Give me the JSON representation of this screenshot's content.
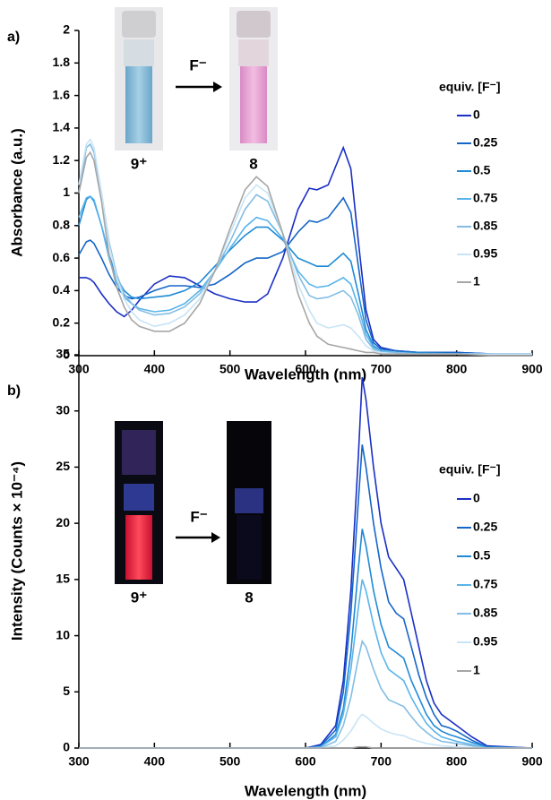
{
  "chart_data": [
    {
      "type": "line",
      "panel_label": "a)",
      "xlabel": "Wavelength (nm)",
      "ylabel": "Absorbance (a.u.)",
      "annotations": [
        "9⁺",
        "F⁻",
        "8"
      ],
      "legend_title": "equiv. [F⁻]",
      "legend": "right",
      "xlim": [
        300,
        900
      ],
      "xticks": [
        300,
        400,
        500,
        600,
        700,
        800,
        900
      ],
      "ylim": [
        0,
        2
      ],
      "yticks": [
        0,
        0.2,
        0.4,
        0.6,
        0.8,
        1,
        1.2,
        1.4,
        1.6,
        1.8,
        2
      ],
      "x": [
        300,
        310,
        315,
        320,
        330,
        340,
        350,
        360,
        370,
        380,
        400,
        420,
        440,
        460,
        480,
        500,
        520,
        535,
        550,
        570,
        590,
        605,
        615,
        630,
        650,
        660,
        670,
        680,
        690,
        700,
        720,
        750,
        800,
        850,
        900
      ],
      "series": [
        {
          "name": "0",
          "color": "#1a2fc4",
          "values": [
            0.48,
            0.48,
            0.47,
            0.45,
            0.38,
            0.32,
            0.27,
            0.24,
            0.28,
            0.34,
            0.44,
            0.49,
            0.48,
            0.43,
            0.38,
            0.35,
            0.33,
            0.33,
            0.38,
            0.6,
            0.9,
            1.03,
            1.02,
            1.05,
            1.28,
            1.15,
            0.7,
            0.28,
            0.1,
            0.05,
            0.03,
            0.02,
            0.02,
            0.01,
            0.01
          ]
        },
        {
          "name": "0.25",
          "color": "#1565c8",
          "values": [
            0.62,
            0.7,
            0.71,
            0.69,
            0.6,
            0.5,
            0.42,
            0.37,
            0.35,
            0.36,
            0.4,
            0.43,
            0.43,
            0.42,
            0.44,
            0.5,
            0.57,
            0.6,
            0.6,
            0.64,
            0.76,
            0.83,
            0.82,
            0.85,
            0.97,
            0.88,
            0.55,
            0.22,
            0.08,
            0.04,
            0.03,
            0.02,
            0.02,
            0.01,
            0.01
          ]
        },
        {
          "name": "0.5",
          "color": "#1f8ad6",
          "values": [
            0.8,
            0.96,
            0.98,
            0.95,
            0.8,
            0.62,
            0.48,
            0.4,
            0.36,
            0.35,
            0.36,
            0.37,
            0.4,
            0.45,
            0.55,
            0.65,
            0.74,
            0.79,
            0.79,
            0.71,
            0.6,
            0.57,
            0.55,
            0.55,
            0.63,
            0.58,
            0.38,
            0.16,
            0.06,
            0.03,
            0.02,
            0.02,
            0.01,
            0.01,
            0.01
          ]
        },
        {
          "name": "0.75",
          "color": "#5ab4ea",
          "values": [
            0.85,
            0.97,
            0.98,
            0.96,
            0.8,
            0.6,
            0.45,
            0.36,
            0.32,
            0.29,
            0.27,
            0.28,
            0.32,
            0.4,
            0.52,
            0.66,
            0.79,
            0.85,
            0.83,
            0.72,
            0.52,
            0.44,
            0.42,
            0.43,
            0.48,
            0.44,
            0.3,
            0.13,
            0.05,
            0.03,
            0.02,
            0.01,
            0.01,
            0.01,
            0.01
          ]
        },
        {
          "name": "0.85",
          "color": "#84bde3",
          "values": [
            1,
            1.28,
            1.3,
            1.25,
            1,
            0.7,
            0.5,
            0.38,
            0.32,
            0.28,
            0.25,
            0.26,
            0.3,
            0.38,
            0.52,
            0.7,
            0.9,
            0.99,
            0.95,
            0.75,
            0.5,
            0.37,
            0.35,
            0.36,
            0.4,
            0.36,
            0.25,
            0.1,
            0.04,
            0.02,
            0.02,
            0.01,
            0.01,
            0.01,
            0.01
          ]
        },
        {
          "name": "0.95",
          "color": "#c8e4f6",
          "values": [
            1.05,
            1.3,
            1.33,
            1.28,
            1,
            0.68,
            0.48,
            0.35,
            0.27,
            0.22,
            0.18,
            0.2,
            0.25,
            0.35,
            0.52,
            0.75,
            0.97,
            1.05,
            1,
            0.75,
            0.44,
            0.28,
            0.2,
            0.17,
            0.19,
            0.17,
            0.12,
            0.06,
            0.03,
            0.02,
            0.01,
            0.01,
            0.01,
            0.01,
            0.01
          ]
        },
        {
          "name": "1",
          "color": "#a6a6a6",
          "values": [
            1,
            1.22,
            1.25,
            1.2,
            0.95,
            0.62,
            0.42,
            0.3,
            0.22,
            0.18,
            0.15,
            0.15,
            0.2,
            0.32,
            0.52,
            0.78,
            1.02,
            1.1,
            1.04,
            0.75,
            0.38,
            0.2,
            0.12,
            0.07,
            0.05,
            0.04,
            0.03,
            0.02,
            0.02,
            0.01,
            0.01,
            0.01,
            0.01,
            0,
            0
          ]
        }
      ]
    },
    {
      "type": "line",
      "panel_label": "b)",
      "xlabel": "Wavelength (nm)",
      "ylabel": "Intensity (Counts × 10⁻⁴)",
      "annotations": [
        "9⁺",
        "F⁻",
        "8"
      ],
      "legend_title": "equiv. [F⁻]",
      "legend": "right",
      "xlim": [
        300,
        900
      ],
      "xticks": [
        300,
        400,
        500,
        600,
        700,
        800,
        900
      ],
      "ylim": [
        0,
        35
      ],
      "yticks": [
        0,
        5,
        10,
        15,
        20,
        25,
        30,
        35
      ],
      "x": [
        300,
        400,
        500,
        600,
        620,
        640,
        650,
        660,
        670,
        675,
        680,
        690,
        700,
        710,
        720,
        730,
        740,
        750,
        760,
        770,
        780,
        790,
        800,
        820,
        840,
        900
      ],
      "series": [
        {
          "name": "0",
          "color": "#1a2fc4",
          "values": [
            0,
            0,
            0,
            0,
            0.3,
            2,
            6,
            14,
            26,
            33,
            31,
            25,
            20,
            17,
            16,
            15,
            12,
            9,
            6,
            4,
            3,
            2.5,
            2,
            1,
            0.2,
            0
          ]
        },
        {
          "name": "0.25",
          "color": "#1565c8",
          "values": [
            0,
            0,
            0,
            0,
            0.2,
            1.6,
            5,
            12,
            22,
            27,
            25,
            20,
            16,
            13,
            12,
            11.5,
            9,
            6.5,
            4.5,
            3,
            2,
            1.8,
            1.5,
            0.7,
            0.1,
            0
          ]
        },
        {
          "name": "0.5",
          "color": "#1f8ad6",
          "values": [
            0,
            0,
            0,
            0,
            0.1,
            1.2,
            3.5,
            8.5,
            16,
            19.5,
            18,
            14,
            11,
            9,
            8.5,
            8,
            6,
            4.5,
            3,
            2,
            1.5,
            1.2,
            1,
            0.5,
            0.1,
            0
          ]
        },
        {
          "name": "0.75",
          "color": "#5ab4ea",
          "values": [
            0,
            0,
            0,
            0,
            0.1,
            1,
            3,
            7,
            12.5,
            15,
            14,
            11,
            8.5,
            7,
            6.5,
            6,
            4.5,
            3.3,
            2.2,
            1.5,
            1,
            0.8,
            0.6,
            0.3,
            0,
            0
          ]
        },
        {
          "name": "0.85",
          "color": "#84bde3",
          "values": [
            0,
            0,
            0,
            0,
            0,
            0.6,
            2,
            4.5,
            8,
            9.5,
            9,
            7,
            5.3,
            4.3,
            4,
            3.7,
            2.8,
            2,
            1.4,
            0.9,
            0.6,
            0.5,
            0.4,
            0.2,
            0,
            0
          ]
        },
        {
          "name": "0.95",
          "color": "#c8e4f6",
          "values": [
            0,
            0,
            0,
            0,
            0,
            0.2,
            0.7,
            1.5,
            2.6,
            3,
            2.8,
            2.2,
            1.7,
            1.4,
            1.2,
            1.1,
            0.8,
            0.6,
            0.4,
            0.3,
            0.2,
            0.15,
            0.1,
            0.05,
            0,
            0
          ]
        },
        {
          "name": "1",
          "color": "#a6a6a6",
          "values": [
            0,
            0,
            0,
            0,
            0,
            0,
            0,
            0,
            0.1,
            0.1,
            0.1,
            0,
            0,
            0,
            0,
            0,
            0,
            0,
            0,
            0,
            0,
            0,
            0,
            0,
            0,
            0
          ]
        }
      ]
    }
  ]
}
